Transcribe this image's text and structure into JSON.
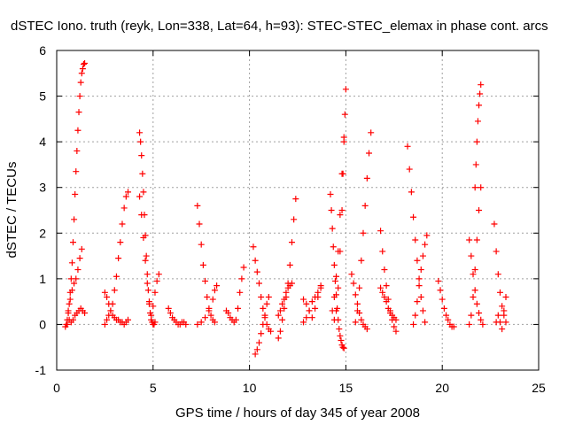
{
  "chart_data": {
    "type": "scatter",
    "title": "dSTEC Iono. truth (reyk, Lon=338, Lat=64, h=93): STEC-STEC_elemax in phase cont. arcs",
    "xlabel": "GPS time / hours of day 345 of year 2008",
    "ylabel": "dSTEC  / TECUs",
    "xlim": [
      0,
      25
    ],
    "ylim": [
      -1,
      6
    ],
    "xticks": [
      "0",
      "5",
      "10",
      "15",
      "20",
      "25"
    ],
    "yticks": [
      "-1",
      "0",
      "1",
      "2",
      "3",
      "4",
      "5",
      "6"
    ],
    "grid": true,
    "marker": "plus",
    "color": "#ff0000",
    "arcs": [
      {
        "x": [
          0.5,
          0.55,
          0.6,
          0.65,
          0.7,
          0.75,
          0.8,
          0.85,
          0.9,
          0.95,
          1.0,
          1.05,
          1.1,
          1.15,
          1.2,
          1.25,
          1.3,
          1.35,
          1.4,
          1.45
        ],
        "y": [
          0.0,
          0.1,
          0.25,
          0.45,
          0.7,
          1.0,
          1.35,
          1.8,
          2.3,
          2.85,
          3.35,
          3.8,
          4.25,
          4.65,
          5.0,
          5.3,
          5.5,
          5.6,
          5.7,
          5.72
        ]
      },
      {
        "x": [
          0.45,
          0.55,
          0.65,
          0.75,
          0.85,
          0.95,
          1.05,
          1.15,
          1.25,
          1.35,
          1.45
        ],
        "y": [
          -0.05,
          0.0,
          0.1,
          0.05,
          0.1,
          0.2,
          0.25,
          0.3,
          0.35,
          0.3,
          0.25
        ]
      },
      {
        "x": [
          0.6,
          0.7,
          0.8,
          0.9,
          1.0,
          1.1,
          1.2,
          1.3
        ],
        "y": [
          0.3,
          0.55,
          0.75,
          0.9,
          1.0,
          1.2,
          1.45,
          1.65
        ]
      },
      {
        "x": [
          2.5,
          2.6,
          2.7,
          2.8,
          2.9,
          3.0,
          3.1,
          3.2,
          3.3,
          3.4,
          3.5,
          3.6,
          3.7
        ],
        "y": [
          0.0,
          0.1,
          0.2,
          0.3,
          0.45,
          0.75,
          1.05,
          1.45,
          1.8,
          2.2,
          2.55,
          2.8,
          2.9
        ]
      },
      {
        "x": [
          2.5,
          2.6,
          2.7,
          2.8,
          2.9,
          3.0,
          3.1,
          3.2,
          3.3,
          3.4,
          3.5,
          3.6,
          3.7
        ],
        "y": [
          0.7,
          0.6,
          0.45,
          0.3,
          0.2,
          0.15,
          0.1,
          0.1,
          0.05,
          0.05,
          0.0,
          0.05,
          0.1
        ]
      },
      {
        "x": [
          4.3,
          4.35,
          4.4,
          4.45,
          4.5,
          4.55,
          4.6,
          4.65,
          4.7,
          4.75,
          4.8,
          4.85,
          4.9,
          4.95,
          5.0,
          5.05,
          5.1
        ],
        "y": [
          4.2,
          4.0,
          3.7,
          3.3,
          2.9,
          2.4,
          1.95,
          1.5,
          1.1,
          0.75,
          0.45,
          0.25,
          0.1,
          0.05,
          0.0,
          0.0,
          0.05
        ]
      },
      {
        "x": [
          4.3,
          4.4,
          4.5,
          4.6,
          4.7,
          4.8,
          4.9,
          5.0,
          5.1,
          5.2,
          5.3
        ],
        "y": [
          2.8,
          2.4,
          1.9,
          1.4,
          0.9,
          0.5,
          0.2,
          0.4,
          0.7,
          0.95,
          1.1
        ]
      },
      {
        "x": [
          5.8,
          5.9,
          6.0,
          6.1,
          6.2,
          6.3,
          6.4,
          6.5,
          6.6,
          6.7
        ],
        "y": [
          0.35,
          0.25,
          0.15,
          0.1,
          0.05,
          0.0,
          0.0,
          0.05,
          0.05,
          0.0
        ]
      },
      {
        "x": [
          7.3,
          7.4,
          7.5,
          7.6,
          7.7,
          7.8,
          7.9,
          8.0,
          8.1,
          8.2
        ],
        "y": [
          2.6,
          2.2,
          1.75,
          1.3,
          0.95,
          0.6,
          0.35,
          0.2,
          0.1,
          0.05
        ]
      },
      {
        "x": [
          7.3,
          7.5,
          7.7,
          7.9,
          8.1,
          8.2,
          8.3
        ],
        "y": [
          0.0,
          0.05,
          0.15,
          0.3,
          0.55,
          0.75,
          0.85
        ]
      },
      {
        "x": [
          8.8,
          8.9,
          9.0,
          9.1,
          9.2,
          9.3,
          9.4,
          9.5,
          9.6,
          9.7
        ],
        "y": [
          0.3,
          0.25,
          0.15,
          0.1,
          0.05,
          0.1,
          0.35,
          0.7,
          1.0,
          1.25
        ]
      },
      {
        "x": [
          10.2,
          10.3,
          10.4,
          10.5,
          10.6,
          10.7,
          10.8,
          10.9,
          11.0,
          11.1
        ],
        "y": [
          1.7,
          1.4,
          1.15,
          0.9,
          0.6,
          0.35,
          0.15,
          0.0,
          -0.1,
          -0.15
        ]
      },
      {
        "x": [
          10.3,
          10.4,
          10.5,
          10.6,
          10.7,
          10.8,
          10.9,
          11.0
        ],
        "y": [
          -0.65,
          -0.55,
          -0.4,
          -0.2,
          0.0,
          0.2,
          0.45,
          0.6
        ]
      },
      {
        "x": [
          11.5,
          11.6,
          11.7,
          11.8,
          11.9,
          12.0,
          12.1,
          12.2,
          12.3,
          12.4
        ],
        "y": [
          -0.3,
          -0.15,
          0.1,
          0.35,
          0.6,
          0.9,
          1.3,
          1.8,
          2.3,
          2.75
        ]
      },
      {
        "x": [
          11.5,
          11.6,
          11.7,
          11.8,
          11.9,
          12.0,
          12.1,
          12.2
        ],
        "y": [
          0.2,
          0.3,
          0.45,
          0.55,
          0.7,
          0.8,
          0.85,
          0.9
        ]
      },
      {
        "x": [
          12.8,
          12.95,
          13.1,
          13.25,
          13.4,
          13.55,
          13.7
        ],
        "y": [
          0.55,
          0.45,
          0.3,
          0.15,
          0.35,
          0.6,
          0.8
        ]
      },
      {
        "x": [
          12.8,
          12.95,
          13.1,
          13.25,
          13.4,
          13.55,
          13.7
        ],
        "y": [
          0.05,
          0.15,
          0.3,
          0.5,
          0.6,
          0.7,
          0.85
        ]
      },
      {
        "x": [
          14.2,
          14.25,
          14.3,
          14.35,
          14.4,
          14.45,
          14.5,
          14.55,
          14.6,
          14.65,
          14.7,
          14.75,
          14.8,
          14.85,
          14.9
        ],
        "y": [
          2.85,
          2.5,
          2.1,
          1.7,
          1.3,
          0.95,
          0.65,
          0.35,
          0.1,
          -0.1,
          -0.25,
          -0.35,
          -0.45,
          -0.5,
          -0.52
        ]
      },
      {
        "x": [
          14.3,
          14.4,
          14.5,
          14.6,
          14.7,
          14.8,
          14.9
        ],
        "y": [
          0.3,
          0.6,
          1.05,
          1.6,
          2.4,
          3.3,
          4.1
        ]
      },
      {
        "x": [
          14.4,
          14.5,
          14.6,
          14.7,
          14.8,
          14.85,
          14.9,
          14.95,
          15.0
        ],
        "y": [
          0.1,
          0.3,
          0.8,
          1.6,
          2.5,
          3.3,
          4.0,
          4.6,
          5.15
        ]
      },
      {
        "x": [
          15.3,
          15.4,
          15.5,
          15.6,
          15.7,
          15.8,
          15.9,
          16.0,
          16.1
        ],
        "y": [
          1.1,
          0.9,
          0.65,
          0.45,
          0.25,
          0.1,
          0.0,
          -0.05,
          -0.1
        ]
      },
      {
        "x": [
          15.5,
          15.6,
          15.7,
          15.8,
          15.9,
          16.0,
          16.1,
          16.2,
          16.3
        ],
        "y": [
          0.05,
          0.3,
          0.8,
          1.4,
          2.0,
          2.6,
          3.2,
          3.75,
          4.2
        ]
      },
      {
        "x": [
          16.8,
          16.9,
          17.0,
          17.1,
          17.2,
          17.3,
          17.4,
          17.5,
          17.6
        ],
        "y": [
          2.05,
          1.6,
          1.2,
          0.85,
          0.55,
          0.3,
          0.1,
          -0.05,
          -0.15
        ]
      },
      {
        "x": [
          16.8,
          16.9,
          17.0,
          17.1,
          17.2,
          17.3,
          17.4,
          17.5,
          17.6
        ],
        "y": [
          0.8,
          0.7,
          0.6,
          0.5,
          0.35,
          0.25,
          0.2,
          0.15,
          0.1
        ]
      },
      {
        "x": [
          18.2,
          18.3,
          18.4,
          18.5,
          18.6,
          18.7,
          18.8,
          18.9,
          19.0,
          19.1
        ],
        "y": [
          3.9,
          3.4,
          2.9,
          2.35,
          1.85,
          1.4,
          1.0,
          0.6,
          0.3,
          0.05
        ]
      },
      {
        "x": [
          18.5,
          18.6,
          18.7,
          18.8,
          18.9,
          19.0,
          19.1,
          19.2
        ],
        "y": [
          0.0,
          0.2,
          0.5,
          0.85,
          1.2,
          1.5,
          1.75,
          1.95
        ]
      },
      {
        "x": [
          19.8,
          19.9,
          20.0,
          20.1,
          20.2,
          20.3,
          20.4,
          20.5,
          20.6
        ],
        "y": [
          0.95,
          0.75,
          0.55,
          0.35,
          0.2,
          0.1,
          0.0,
          -0.05,
          -0.05
        ]
      },
      {
        "x": [
          21.4,
          21.5,
          21.6,
          21.7,
          21.8,
          21.9,
          22.0
        ],
        "y": [
          0.0,
          0.2,
          0.6,
          1.2,
          1.85,
          2.5,
          3.0
        ]
      },
      {
        "x": [
          21.7,
          21.75,
          21.8,
          21.85,
          21.9,
          21.95,
          22.0
        ],
        "y": [
          3.0,
          3.5,
          4.0,
          4.45,
          4.8,
          5.05,
          5.25
        ]
      },
      {
        "x": [
          21.4,
          21.5,
          21.6,
          21.7,
          21.8,
          21.9,
          22.0,
          22.1
        ],
        "y": [
          1.85,
          1.5,
          1.1,
          0.75,
          0.45,
          0.25,
          0.1,
          0.0
        ]
      },
      {
        "x": [
          22.7,
          22.8,
          22.9,
          23.0,
          23.1,
          23.2,
          23.3
        ],
        "y": [
          2.2,
          1.6,
          1.1,
          0.7,
          0.4,
          0.2,
          0.05
        ]
      },
      {
        "x": [
          22.8,
          22.9,
          23.0,
          23.1,
          23.2,
          23.3
        ],
        "y": [
          0.05,
          0.2,
          0.05,
          -0.1,
          0.3,
          0.6
        ]
      }
    ]
  }
}
